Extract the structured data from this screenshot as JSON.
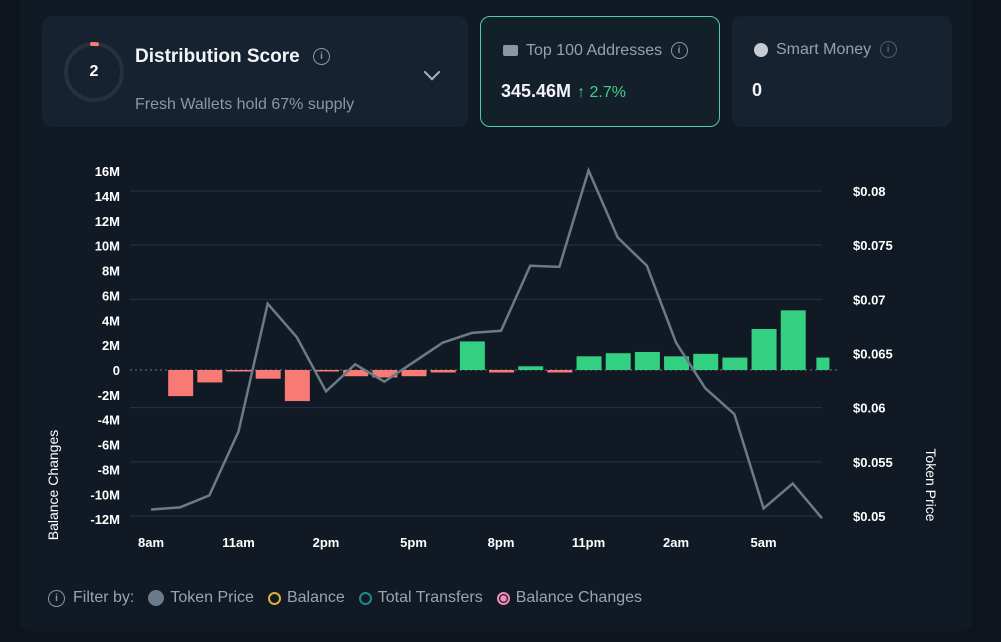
{
  "distribution": {
    "score": "2",
    "title": "Distribution Score",
    "subtitle": "Fresh Wallets hold 67% supply",
    "score_fraction": 0.02
  },
  "top100": {
    "title": "Top 100 Addresses",
    "value": "345.46M",
    "change": "↑ 2.7%",
    "icon": "money-icon"
  },
  "smart_money": {
    "title": "Smart Money",
    "value": "0",
    "icon": "sunglasses-icon"
  },
  "legend": {
    "filter_label": "Filter by:",
    "items": [
      {
        "label": "Token Price",
        "color": "#6b7a8b",
        "filled": true
      },
      {
        "label": "Balance",
        "color": "#d9b23a",
        "filled": false
      },
      {
        "label": "Total Transfers",
        "color": "#1e8a8a",
        "filled": false
      },
      {
        "label": "Balance Changes",
        "color": "#f08cb6",
        "filled": true
      }
    ]
  },
  "colors": {
    "positive": "#34d081",
    "negative": "#f87a74",
    "line": "#6b7a89",
    "grid": "#1f3448",
    "accent": "#4fcf9f"
  },
  "chart_data": {
    "type": "bar+line",
    "ylabel": "Balance Changes",
    "y2label": "Token Price",
    "ylim": [
      -12,
      16
    ],
    "y_ticks": [
      "16M",
      "14M",
      "12M",
      "10M",
      "8M",
      "6M",
      "4M",
      "2M",
      "0",
      "-2M",
      "-4M",
      "-6M",
      "-8M",
      "-10M",
      "-12M"
    ],
    "y2lim": [
      0.05,
      0.08
    ],
    "y2_ticks": [
      "$0.08",
      "$0.075",
      "$0.07",
      "$0.065",
      "$0.06",
      "$0.055",
      "$0.05"
    ],
    "x_tick_labels": [
      {
        "index": 0,
        "label": "8am"
      },
      {
        "index": 3,
        "label": "11am"
      },
      {
        "index": 6,
        "label": "2pm"
      },
      {
        "index": 9,
        "label": "5pm"
      },
      {
        "index": 12,
        "label": "8pm"
      },
      {
        "index": 15,
        "label": "11pm"
      },
      {
        "index": 18,
        "label": "2am"
      },
      {
        "index": 21,
        "label": "5am"
      }
    ],
    "series": [
      {
        "name": "Balance Changes",
        "type": "bar",
        "unit": "M",
        "values": [
          0,
          -2.1,
          -1.0,
          -0.1,
          -0.7,
          -2.5,
          -0.1,
          -0.5,
          -0.6,
          -0.5,
          -0.2,
          2.3,
          -0.2,
          0.3,
          -0.2,
          1.1,
          1.35,
          1.45,
          1.1,
          1.3,
          1.0,
          3.3,
          4.8,
          1.0
        ]
      },
      {
        "name": "Token Price",
        "type": "line",
        "axis": "right",
        "values": [
          0.0506,
          0.0508,
          0.0519,
          0.0578,
          0.0696,
          0.0665,
          0.0615,
          0.064,
          0.0624,
          0.0642,
          0.066,
          0.0669,
          0.0671,
          0.0731,
          0.073,
          0.0819,
          0.0757,
          0.0731,
          0.066,
          0.0618,
          0.0594,
          0.0507,
          0.053,
          0.0498
        ]
      }
    ]
  }
}
